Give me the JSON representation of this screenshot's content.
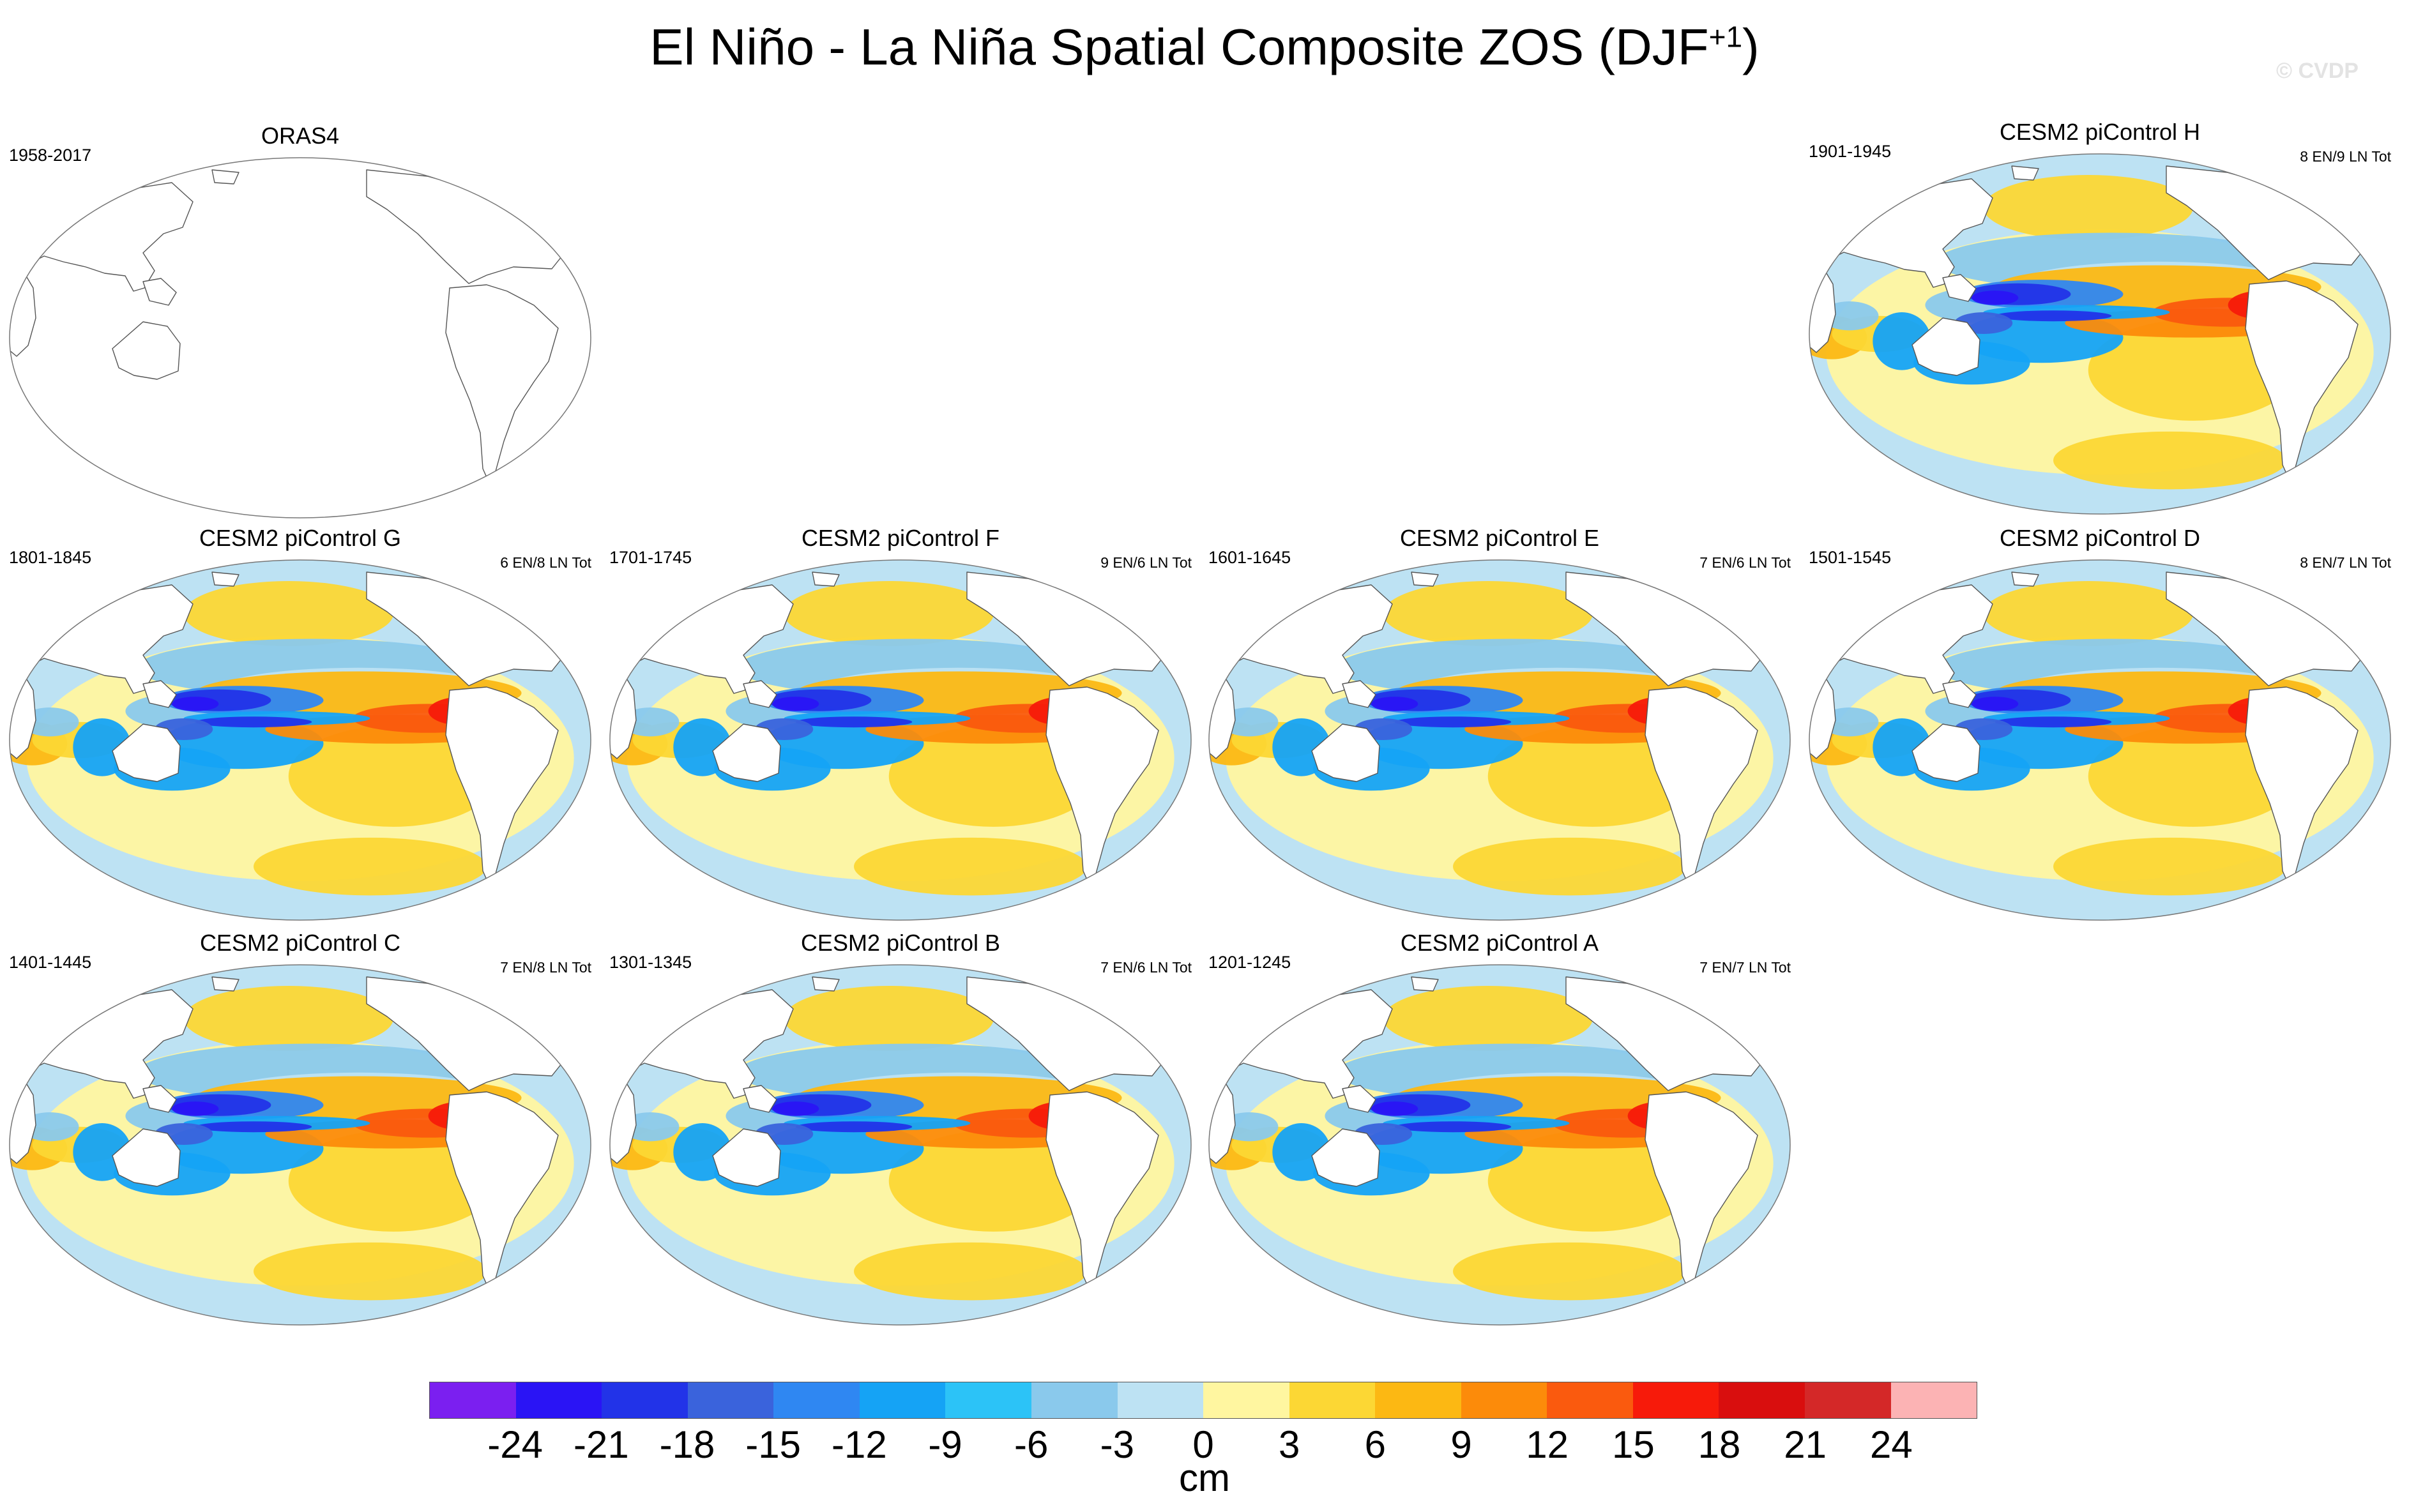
{
  "title": "El Niño - La Niña Spatial Composite ZOS (DJF",
  "title_superscript": "+1",
  "title_close": ")",
  "credit": "© CVDP",
  "panels": [
    {
      "title": "ORAS4",
      "years": "1958-2017",
      "counts": "",
      "filled": false
    },
    {
      "title": "CESM2 piControl H",
      "years": "1901-1945",
      "counts": "8 EN/9 LN Tot",
      "filled": true
    },
    {
      "title": "CESM2 piControl G",
      "years": "1801-1845",
      "counts": "6 EN/8 LN Tot",
      "filled": true
    },
    {
      "title": "CESM2 piControl F",
      "years": "1701-1745",
      "counts": "9 EN/6 LN Tot",
      "filled": true
    },
    {
      "title": "CESM2 piControl E",
      "years": "1601-1645",
      "counts": "7 EN/6 LN Tot",
      "filled": true
    },
    {
      "title": "CESM2 piControl D",
      "years": "1501-1545",
      "counts": "8 EN/7 LN Tot",
      "filled": true
    },
    {
      "title": "CESM2 piControl C",
      "years": "1401-1445",
      "counts": "7 EN/8 LN Tot",
      "filled": true
    },
    {
      "title": "CESM2 piControl B",
      "years": "1301-1345",
      "counts": "7 EN/6 LN Tot",
      "filled": true
    },
    {
      "title": "CESM2 piControl A",
      "years": "1201-1245",
      "counts": "7 EN/7 LN Tot",
      "filled": true
    }
  ],
  "colorbar": {
    "units": "cm",
    "ticks": [
      "-24",
      "-21",
      "-18",
      "-15",
      "-12",
      "-9",
      "-6",
      "-3",
      "0",
      "3",
      "6",
      "9",
      "12",
      "15",
      "18",
      "21",
      "24"
    ],
    "colors": [
      "#7b1ff0",
      "#2a14f5",
      "#2233e8",
      "#3a63dc",
      "#2f87f2",
      "#15a3f5",
      "#2cc3f7",
      "#8ac9ec",
      "#bde2f3",
      "#fff6a0",
      "#fcd734",
      "#fcb813",
      "#fc8b0a",
      "#fa5a0e",
      "#f71a0a",
      "#d90e0e",
      "#d42828",
      "#fcb3b4"
    ]
  }
}
